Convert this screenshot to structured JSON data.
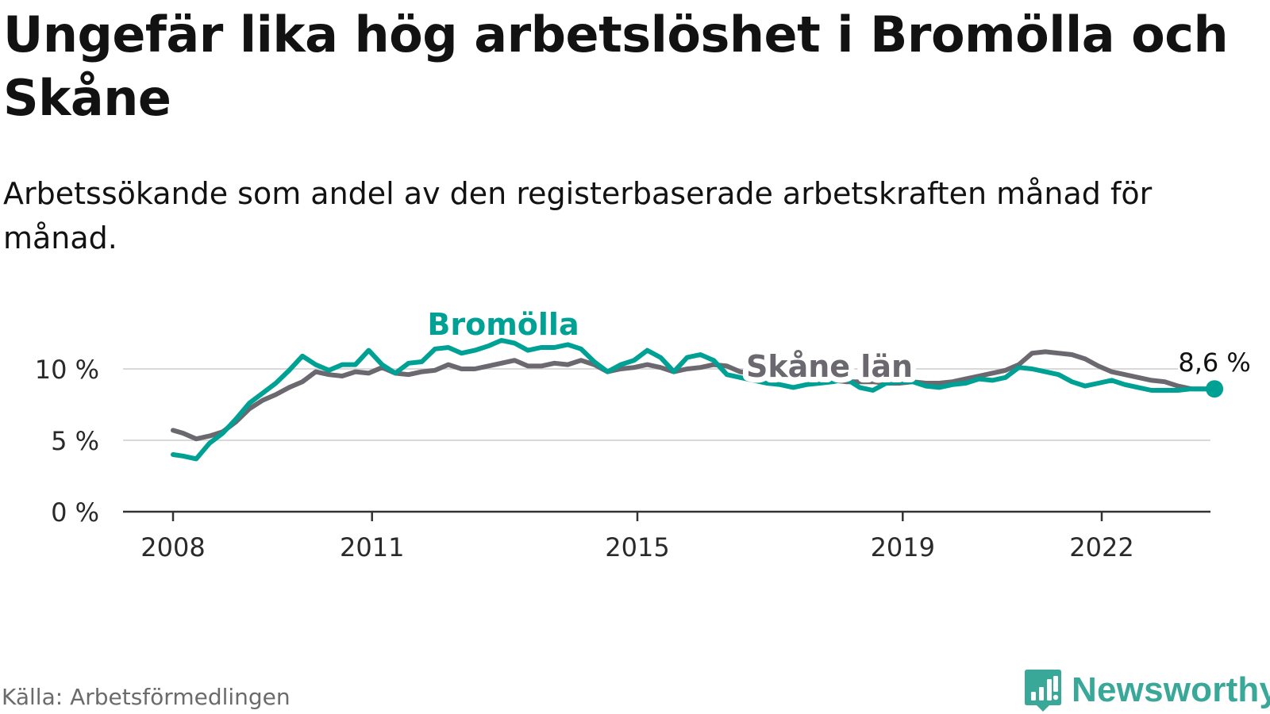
{
  "title": "Ungefär lika hög arbetslöshet i Bromölla och Skåne",
  "subtitle": "Arbetssökande som andel av den registerbaserade arbetskraften månad för månad.",
  "source": "Källa: Arbetsförmedlingen",
  "brand": {
    "name": "Newsworthy",
    "color": "#3aa898"
  },
  "chart_data": {
    "type": "line",
    "title": "Ungefär lika hög arbetslöshet i Bromölla och Skåne",
    "xlabel": "",
    "ylabel": "",
    "xlim": [
      2007.8,
      2024.5
    ],
    "ylim": [
      0,
      10
    ],
    "yticks": [
      0,
      5,
      10
    ],
    "ytick_labels": [
      "0 %",
      "5 %",
      "10 %"
    ],
    "xticks": [
      2008,
      2011,
      2015,
      2019,
      2022
    ],
    "xtick_labels": [
      "2008",
      "2011",
      "2015",
      "2019",
      "2022"
    ],
    "grid": true,
    "end_label": "8,6 %",
    "series": [
      {
        "name": "Skåne län",
        "color": "#6b686f",
        "x": [
          2008.0,
          2008.15,
          2008.35,
          2008.55,
          2008.75,
          2008.95,
          2009.15,
          2009.35,
          2009.55,
          2009.75,
          2009.95,
          2010.15,
          2010.35,
          2010.55,
          2010.75,
          2010.95,
          2011.15,
          2011.35,
          2011.55,
          2011.75,
          2011.95,
          2012.15,
          2012.35,
          2012.55,
          2012.75,
          2012.95,
          2013.15,
          2013.35,
          2013.55,
          2013.75,
          2013.95,
          2014.15,
          2014.35,
          2014.55,
          2014.75,
          2014.95,
          2015.15,
          2015.35,
          2015.55,
          2015.75,
          2015.95,
          2016.15,
          2016.35,
          2016.55,
          2016.75,
          2016.95,
          2017.15,
          2017.35,
          2017.55,
          2017.75,
          2017.95,
          2018.15,
          2018.35,
          2018.55,
          2018.75,
          2018.95,
          2019.15,
          2019.35,
          2019.55,
          2019.75,
          2019.95,
          2020.15,
          2020.35,
          2020.55,
          2020.75,
          2020.95,
          2021.15,
          2021.35,
          2021.55,
          2021.75,
          2021.95,
          2022.15,
          2022.35,
          2022.55,
          2022.75,
          2022.95,
          2023.15,
          2023.35,
          2023.55,
          2023.7
        ],
        "values": [
          5.7,
          5.5,
          5.1,
          5.3,
          5.6,
          6.3,
          7.2,
          7.8,
          8.2,
          8.7,
          9.1,
          9.8,
          9.6,
          9.5,
          9.8,
          9.7,
          10.1,
          9.7,
          9.6,
          9.8,
          9.9,
          10.3,
          10.0,
          10.0,
          10.2,
          10.4,
          10.6,
          10.2,
          10.2,
          10.4,
          10.3,
          10.6,
          10.3,
          9.8,
          10.0,
          10.1,
          10.3,
          10.1,
          9.8,
          10.0,
          10.1,
          10.3,
          10.2,
          9.8,
          9.7,
          9.6,
          9.6,
          9.4,
          9.3,
          9.2,
          9.2,
          9.1,
          9.1,
          9.1,
          9.0,
          9.0,
          9.1,
          9.0,
          9.0,
          9.1,
          9.3,
          9.5,
          9.7,
          9.9,
          10.3,
          11.1,
          11.2,
          11.1,
          11.0,
          10.7,
          10.2,
          9.8,
          9.6,
          9.4,
          9.2,
          9.1,
          8.8,
          8.6,
          8.6,
          8.6
        ]
      },
      {
        "name": "Bromölla",
        "color": "#00a195",
        "x": [
          2008.0,
          2008.15,
          2008.35,
          2008.55,
          2008.75,
          2008.95,
          2009.15,
          2009.35,
          2009.55,
          2009.75,
          2009.95,
          2010.15,
          2010.35,
          2010.55,
          2010.75,
          2010.95,
          2011.15,
          2011.35,
          2011.55,
          2011.75,
          2011.95,
          2012.15,
          2012.35,
          2012.55,
          2012.75,
          2012.95,
          2013.15,
          2013.35,
          2013.55,
          2013.75,
          2013.95,
          2014.15,
          2014.35,
          2014.55,
          2014.75,
          2014.95,
          2015.15,
          2015.35,
          2015.55,
          2015.75,
          2015.95,
          2016.15,
          2016.35,
          2016.55,
          2016.75,
          2016.95,
          2017.15,
          2017.35,
          2017.55,
          2017.75,
          2017.95,
          2018.15,
          2018.35,
          2018.55,
          2018.75,
          2018.95,
          2019.15,
          2019.35,
          2019.55,
          2019.75,
          2019.95,
          2020.15,
          2020.35,
          2020.55,
          2020.75,
          2020.95,
          2021.15,
          2021.35,
          2021.55,
          2021.75,
          2021.95,
          2022.15,
          2022.35,
          2022.55,
          2022.75,
          2022.95,
          2023.15,
          2023.35,
          2023.55,
          2023.7
        ],
        "values": [
          4.0,
          3.9,
          3.7,
          4.8,
          5.5,
          6.5,
          7.6,
          8.3,
          9.0,
          9.9,
          10.9,
          10.3,
          9.9,
          10.3,
          10.3,
          11.3,
          10.3,
          9.7,
          10.4,
          10.5,
          11.4,
          11.5,
          11.1,
          11.3,
          11.6,
          12.0,
          11.8,
          11.3,
          11.5,
          11.5,
          11.7,
          11.4,
          10.5,
          9.8,
          10.3,
          10.6,
          11.3,
          10.8,
          9.8,
          10.8,
          11.0,
          10.6,
          9.6,
          9.4,
          9.2,
          9.0,
          8.9,
          8.7,
          8.9,
          9.0,
          9.1,
          9.3,
          8.7,
          8.5,
          9.0,
          9.1,
          9.1,
          8.8,
          8.7,
          8.9,
          9.0,
          9.3,
          9.2,
          9.4,
          10.1,
          10.0,
          9.8,
          9.6,
          9.1,
          8.8,
          9.0,
          9.2,
          8.9,
          8.7,
          8.5,
          8.5,
          8.5,
          8.6,
          8.6,
          8.6
        ]
      }
    ]
  }
}
